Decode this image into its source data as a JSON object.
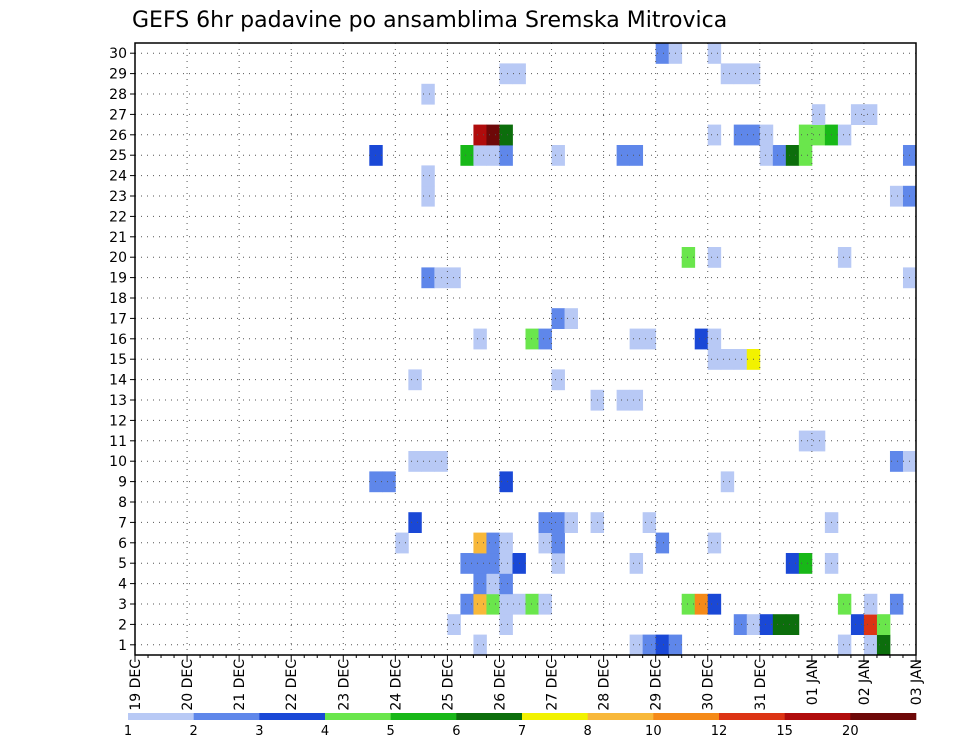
{
  "chart_data": {
    "type": "heatmap",
    "title": "GEFS 6hr padavine po ansamblima Sremska Mitrovica",
    "xlabel": "",
    "ylabel": "",
    "y_ticks": [
      "1",
      "2",
      "3",
      "4",
      "5",
      "6",
      "7",
      "8",
      "9",
      "10",
      "11",
      "12",
      "13",
      "14",
      "15",
      "16",
      "17",
      "18",
      "19",
      "20",
      "21",
      "22",
      "23",
      "24",
      "25",
      "26",
      "27",
      "28",
      "29",
      "30"
    ],
    "x_ticks": [
      "19 DEC",
      "20 DEC",
      "21 DEC",
      "22 DEC",
      "23 DEC",
      "24 DEC",
      "25 DEC",
      "26 DEC",
      "27 DEC",
      "28 DEC",
      "29 DEC",
      "30 DEC",
      "31 DEC",
      "01 JAN",
      "02 JAN",
      "03 JAN"
    ],
    "steps_per_day": 4,
    "total_steps": 60,
    "member_count": 30,
    "legend": {
      "labels": [
        "1",
        "2",
        "3",
        "4",
        "5",
        "6",
        "7",
        "8",
        "10",
        "12",
        "15",
        "20"
      ],
      "colors": [
        "#b8c9f5",
        "#5f87ea",
        "#1a48d6",
        "#6ae64c",
        "#18b818",
        "#0c6e0c",
        "#f2f200",
        "#f8b83a",
        "#f58a18",
        "#dc3414",
        "#b00c0c",
        "#6e0808"
      ]
    },
    "cells": [
      [
        1,
        26,
        1
      ],
      [
        1,
        38,
        1
      ],
      [
        1,
        39,
        2
      ],
      [
        1,
        40,
        3
      ],
      [
        1,
        41,
        2
      ],
      [
        1,
        54,
        1
      ],
      [
        1,
        56,
        1
      ],
      [
        1,
        57,
        6
      ],
      [
        2,
        24,
        1
      ],
      [
        2,
        28,
        1
      ],
      [
        2,
        46,
        2
      ],
      [
        2,
        47,
        1
      ],
      [
        2,
        48,
        3
      ],
      [
        2,
        49,
        6
      ],
      [
        2,
        50,
        6
      ],
      [
        2,
        55,
        3
      ],
      [
        2,
        56,
        12
      ],
      [
        2,
        57,
        4
      ],
      [
        3,
        25,
        2
      ],
      [
        3,
        26,
        8
      ],
      [
        3,
        27,
        4
      ],
      [
        3,
        28,
        1
      ],
      [
        3,
        29,
        1
      ],
      [
        3,
        30,
        4
      ],
      [
        3,
        31,
        1
      ],
      [
        3,
        42,
        4
      ],
      [
        3,
        43,
        10
      ],
      [
        3,
        44,
        3
      ],
      [
        3,
        54,
        4
      ],
      [
        3,
        56,
        1
      ],
      [
        3,
        58,
        2
      ],
      [
        4,
        26,
        2
      ],
      [
        4,
        27,
        1
      ],
      [
        4,
        28,
        2
      ],
      [
        5,
        25,
        2
      ],
      [
        5,
        26,
        2
      ],
      [
        5,
        27,
        2
      ],
      [
        5,
        28,
        1
      ],
      [
        5,
        29,
        3
      ],
      [
        5,
        32,
        1
      ],
      [
        5,
        38,
        1
      ],
      [
        5,
        50,
        3
      ],
      [
        5,
        51,
        5
      ],
      [
        5,
        53,
        1
      ],
      [
        6,
        20,
        1
      ],
      [
        6,
        26,
        8
      ],
      [
        6,
        27,
        2
      ],
      [
        6,
        28,
        1
      ],
      [
        6,
        31,
        1
      ],
      [
        6,
        32,
        2
      ],
      [
        6,
        40,
        2
      ],
      [
        6,
        44,
        1
      ],
      [
        7,
        21,
        3
      ],
      [
        7,
        31,
        2
      ],
      [
        7,
        32,
        2
      ],
      [
        7,
        33,
        1
      ],
      [
        7,
        35,
        1
      ],
      [
        7,
        39,
        1
      ],
      [
        7,
        53,
        1
      ],
      [
        9,
        18,
        2
      ],
      [
        9,
        19,
        2
      ],
      [
        9,
        28,
        3
      ],
      [
        9,
        45,
        1
      ],
      [
        10,
        21,
        1
      ],
      [
        10,
        22,
        1
      ],
      [
        10,
        23,
        1
      ],
      [
        10,
        58,
        2
      ],
      [
        10,
        59,
        1
      ],
      [
        11,
        51,
        1
      ],
      [
        11,
        52,
        1
      ],
      [
        13,
        35,
        1
      ],
      [
        13,
        37,
        1
      ],
      [
        13,
        38,
        1
      ],
      [
        14,
        21,
        1
      ],
      [
        14,
        32,
        1
      ],
      [
        15,
        44,
        1
      ],
      [
        15,
        45,
        1
      ],
      [
        15,
        46,
        1
      ],
      [
        15,
        47,
        7
      ],
      [
        16,
        26,
        1
      ],
      [
        16,
        30,
        4
      ],
      [
        16,
        31,
        2
      ],
      [
        16,
        38,
        1
      ],
      [
        16,
        39,
        1
      ],
      [
        16,
        43,
        3
      ],
      [
        16,
        44,
        1
      ],
      [
        17,
        32,
        2
      ],
      [
        17,
        33,
        1
      ],
      [
        19,
        22,
        2
      ],
      [
        19,
        23,
        1
      ],
      [
        19,
        24,
        1
      ],
      [
        19,
        59,
        1
      ],
      [
        20,
        42,
        4
      ],
      [
        20,
        44,
        1
      ],
      [
        20,
        54,
        1
      ],
      [
        23,
        22,
        1
      ],
      [
        23,
        58,
        1
      ],
      [
        23,
        59,
        2
      ],
      [
        24,
        22,
        1
      ],
      [
        25,
        18,
        3
      ],
      [
        25,
        25,
        5
      ],
      [
        25,
        26,
        1
      ],
      [
        25,
        27,
        1
      ],
      [
        25,
        28,
        2
      ],
      [
        25,
        32,
        1
      ],
      [
        25,
        37,
        2
      ],
      [
        25,
        38,
        2
      ],
      [
        25,
        48,
        1
      ],
      [
        25,
        49,
        2
      ],
      [
        25,
        50,
        6
      ],
      [
        25,
        51,
        4
      ],
      [
        25,
        59,
        2
      ],
      [
        26,
        26,
        15
      ],
      [
        26,
        27,
        20
      ],
      [
        26,
        28,
        6
      ],
      [
        26,
        44,
        1
      ],
      [
        26,
        46,
        2
      ],
      [
        26,
        47,
        2
      ],
      [
        26,
        48,
        1
      ],
      [
        26,
        51,
        4
      ],
      [
        26,
        52,
        4
      ],
      [
        26,
        53,
        5
      ],
      [
        26,
        54,
        1
      ],
      [
        27,
        52,
        1
      ],
      [
        27,
        55,
        1
      ],
      [
        27,
        56,
        1
      ],
      [
        28,
        22,
        1
      ],
      [
        29,
        28,
        1
      ],
      [
        29,
        29,
        1
      ],
      [
        29,
        45,
        1
      ],
      [
        29,
        46,
        1
      ],
      [
        29,
        47,
        1
      ],
      [
        30,
        40,
        2
      ],
      [
        30,
        41,
        1
      ],
      [
        30,
        44,
        1
      ]
    ]
  }
}
